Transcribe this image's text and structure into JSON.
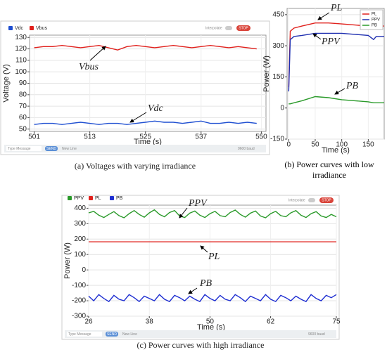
{
  "chart_data": [
    {
      "type": "line",
      "caption": "(a) Voltages with varying irradiance",
      "xlabel": "Time (s)",
      "ylabel": "Voltage (V)",
      "x": [
        501,
        503,
        505,
        507,
        509,
        511,
        513,
        515,
        517,
        519,
        521,
        523,
        525,
        527,
        529,
        531,
        533,
        535,
        537,
        539,
        541,
        543,
        545,
        547,
        549
      ],
      "series": [
        {
          "name": "Vdc",
          "color": "#1f4fd1",
          "values": [
            54,
            55,
            55,
            54,
            55,
            56,
            55,
            54,
            55,
            55,
            54,
            55,
            56,
            57,
            56,
            56,
            55,
            56,
            57,
            55,
            55,
            56,
            55,
            56,
            55
          ]
        },
        {
          "name": "Vbus",
          "color": "#e0201c",
          "values": [
            121,
            122,
            122,
            123,
            122,
            121,
            122,
            123,
            121,
            119,
            122,
            123,
            122,
            121,
            122,
            123,
            122,
            121,
            122,
            123,
            122,
            121,
            122,
            121,
            120
          ]
        }
      ],
      "xlim": [
        500,
        551
      ],
      "xticks": [
        501,
        513,
        525,
        537,
        550
      ],
      "ylim": [
        48,
        132
      ],
      "yticks": [
        50,
        60,
        70,
        80,
        90,
        100,
        110,
        120,
        130
      ],
      "grid": true,
      "legend": "top-left",
      "annotations": [
        "Vbus",
        "Vdc"
      ],
      "ui": {
        "interpolate": "Interpolate",
        "stop": "STOP",
        "message": "Type Message",
        "send": "SEND",
        "line_ending": "New Line",
        "baud": "9600 baud"
      }
    },
    {
      "type": "line",
      "caption": "(b) Power curves with low irradiance",
      "xlabel": "Time (s)",
      "ylabel": "Power (W)",
      "x": [
        0,
        3,
        10,
        25,
        50,
        75,
        100,
        125,
        150,
        160,
        165,
        180
      ],
      "series": [
        {
          "name": "PL",
          "color": "#e0201c",
          "values": [
            100,
            370,
            385,
            395,
            410,
            410,
            405,
            400,
            395,
            385,
            395,
            395
          ]
        },
        {
          "name": "PPV",
          "color": "#1f2fb0",
          "values": [
            80,
            330,
            345,
            350,
            360,
            360,
            360,
            355,
            350,
            330,
            345,
            345
          ]
        },
        {
          "name": "PB",
          "color": "#2a9a2a",
          "values": [
            20,
            20,
            25,
            35,
            55,
            50,
            40,
            35,
            30,
            25,
            25,
            25
          ]
        }
      ],
      "xlim": [
        -3,
        180
      ],
      "xticks": [
        0,
        50,
        100,
        150
      ],
      "ylim": [
        -150,
        480
      ],
      "yticks": [
        -150,
        0,
        150,
        300,
        450
      ],
      "grid": true,
      "legend": "top-right",
      "annotations": [
        "PL",
        "PPV",
        "PB"
      ]
    },
    {
      "type": "line",
      "caption": "(c) Power curves with high irradiance",
      "xlabel": "Time (s)",
      "ylabel": "Power (W)",
      "x": [
        26,
        27,
        28,
        29,
        30,
        31,
        32,
        33,
        34,
        35,
        36,
        37,
        38,
        39,
        40,
        41,
        42,
        43,
        44,
        45,
        46,
        47,
        48,
        49,
        50,
        51,
        52,
        53,
        54,
        55,
        56,
        57,
        58,
        59,
        60,
        61,
        62,
        63,
        64,
        65,
        66,
        67,
        68,
        69,
        70,
        71,
        72,
        73,
        74,
        75
      ],
      "series": [
        {
          "name": "PPV",
          "color": "#2a9a2a",
          "values": [
            370,
            380,
            355,
            340,
            360,
            378,
            352,
            338,
            365,
            385,
            360,
            342,
            370,
            390,
            360,
            345,
            372,
            385,
            350,
            340,
            368,
            382,
            355,
            340,
            365,
            380,
            352,
            345,
            372,
            388,
            360,
            342,
            368,
            382,
            350,
            338,
            365,
            380,
            352,
            345,
            370,
            385,
            355,
            340,
            365,
            378,
            350,
            340,
            360,
            345
          ]
        },
        {
          "name": "PL",
          "color": "#e0201c",
          "values": [
            182,
            182,
            182,
            182,
            182,
            182,
            182,
            182,
            182,
            182,
            182,
            182,
            182,
            182,
            182,
            182,
            182,
            182,
            182,
            182,
            182,
            182,
            182,
            182,
            182,
            182,
            182,
            182,
            182,
            182,
            182,
            182,
            182,
            182,
            182,
            182,
            182,
            182,
            182,
            182,
            182,
            182,
            182,
            182,
            182,
            182,
            182,
            182,
            182,
            182
          ]
        },
        {
          "name": "PB",
          "color": "#1f2fd1",
          "values": [
            -170,
            -200,
            -160,
            -185,
            -205,
            -165,
            -190,
            -200,
            -160,
            -180,
            -205,
            -170,
            -185,
            -200,
            -160,
            -190,
            -205,
            -165,
            -180,
            -200,
            -170,
            -190,
            -205,
            -160,
            -185,
            -200,
            -165,
            -190,
            -200,
            -160,
            -180,
            -205,
            -170,
            -185,
            -200,
            -160,
            -190,
            -205,
            -165,
            -180,
            -200,
            -170,
            -190,
            -205,
            -160,
            -185,
            -200,
            -165,
            -180,
            -160
          ]
        }
      ],
      "xlim": [
        26,
        75
      ],
      "xticks": [
        26,
        38,
        50,
        62,
        75
      ],
      "ylim": [
        -300,
        420
      ],
      "yticks": [
        -300,
        -200,
        -100,
        0,
        100,
        200,
        300,
        400
      ],
      "grid": true,
      "legend": "top-left",
      "annotations": [
        "PPV",
        "PL",
        "PB"
      ],
      "ui": {
        "interpolate": "Interpolate",
        "stop": "STOP",
        "message": "Type Message",
        "send": "SEND",
        "line_ending": "New Line",
        "baud": "9600 baud"
      }
    }
  ]
}
